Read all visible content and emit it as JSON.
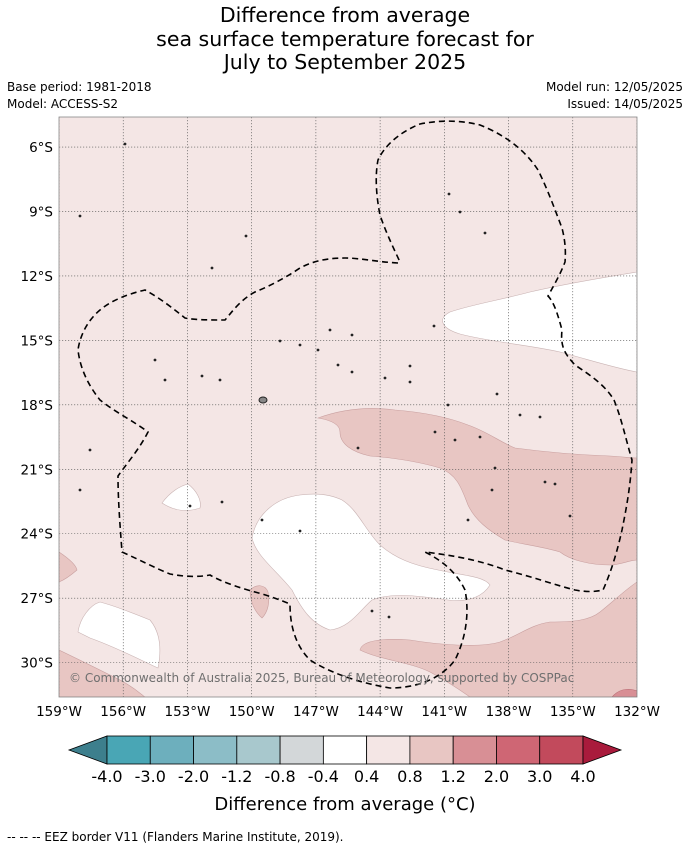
{
  "title_lines": [
    "Difference from average",
    "sea surface temperature forecast for",
    "July to September 2025"
  ],
  "meta": {
    "base_period": "Base period: 1981-2018",
    "model": "Model: ACCESS-S2",
    "model_run": "Model run: 12/05/2025",
    "issued": "Issued: 14/05/2025"
  },
  "map": {
    "lat_labels": [
      "6°S",
      "9°S",
      "12°S",
      "15°S",
      "18°S",
      "21°S",
      "24°S",
      "27°S",
      "30°S"
    ],
    "lon_labels": [
      "159°W",
      "156°W",
      "153°W",
      "150°W",
      "147°W",
      "144°W",
      "141°W",
      "138°W",
      "135°W",
      "132°W"
    ],
    "extent": {
      "lon_min": -159,
      "lon_max": -132,
      "lat_min": -31.6,
      "lat_max": -4.6
    },
    "copyright": "© Commonwealth of Australia 2025, Bureau of Meteorology, supported by COSPPac",
    "eez_border_style": "dashed"
  },
  "colorbar": {
    "tick_labels": [
      "-4.0",
      "-3.0",
      "-2.0",
      "-1.2",
      "-0.8",
      "-0.4",
      "0.4",
      "0.8",
      "1.2",
      "2.0",
      "3.0",
      "4.0"
    ],
    "colors": [
      "#3d7f8d",
      "#49a6b5",
      "#6dafbd",
      "#8cbdc7",
      "#a8c8cd",
      "#d3d7d9",
      "#ffffff",
      "#f4e6e5",
      "#e8c6c3",
      "#d88f95",
      "#cf6674",
      "#c24a5c",
      "#a91b3c"
    ],
    "label": "Difference from average (°C)"
  },
  "footnote": "-- -- -- EEZ border V11 (Flanders Marine Institute, 2019)."
}
